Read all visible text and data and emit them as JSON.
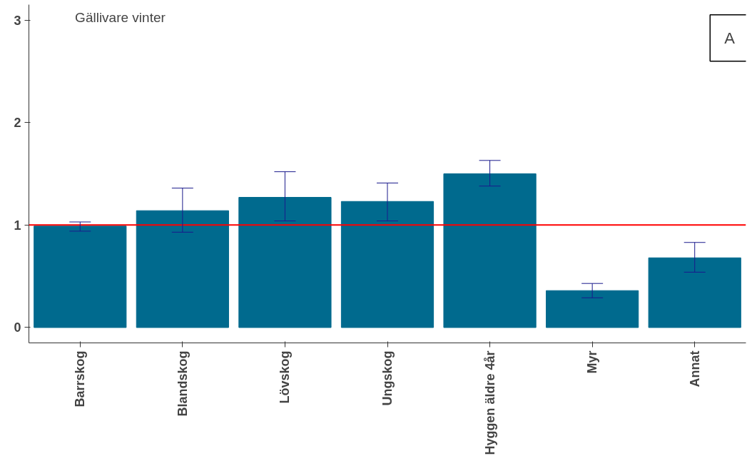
{
  "chart_data": {
    "type": "bar",
    "categories": [
      "Barrskog",
      "Blandskog",
      "Lövskog",
      "Ungskog",
      "Hyggen äldre 4år",
      "Myr",
      "Annat"
    ],
    "values": [
      0.99,
      1.14,
      1.27,
      1.23,
      1.5,
      0.36,
      0.68
    ],
    "errors": [
      [
        0.94,
        1.03
      ],
      [
        0.93,
        1.36
      ],
      [
        1.04,
        1.52
      ],
      [
        1.04,
        1.41
      ],
      [
        1.38,
        1.63
      ],
      [
        0.29,
        0.43
      ],
      [
        0.54,
        0.83
      ]
    ],
    "color": "#006a8e",
    "ylim": [
      -0.15,
      3.15
    ],
    "yticks": [
      0,
      1,
      2,
      3
    ],
    "ref_lines": [
      {
        "axis": "y",
        "value": 1,
        "color": "#ff0000"
      }
    ],
    "annotations": [
      "Gällivare vinter",
      "A"
    ],
    "grid": false
  }
}
